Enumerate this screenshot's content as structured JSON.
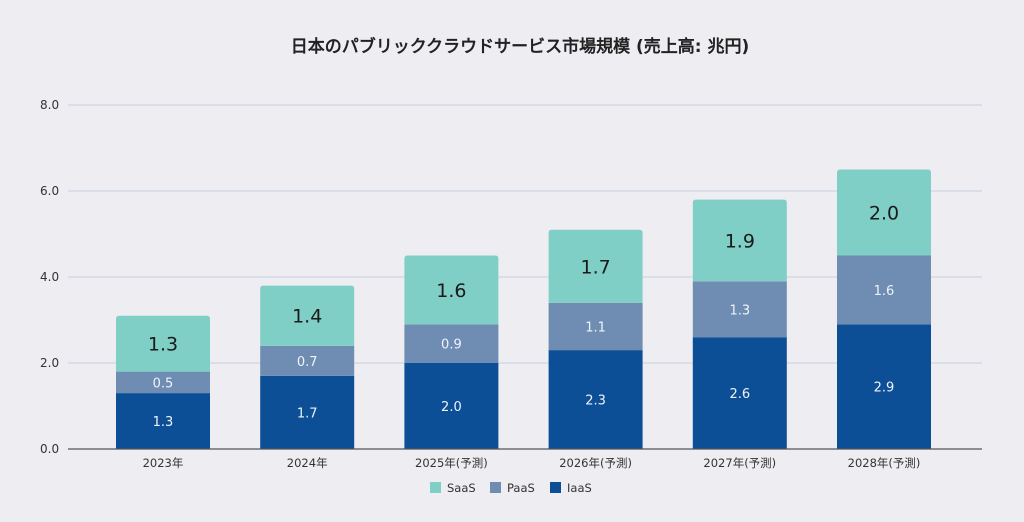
{
  "chart_data": {
    "type": "bar",
    "stacked": true,
    "title": "日本のパブリッククラウドサービス市場規模 (売上高: 兆円)",
    "xlabel": "",
    "ylabel": "",
    "ylim": [
      0,
      8
    ],
    "yticks": [
      "0.0",
      "2.0",
      "4.0",
      "6.0",
      "8.0"
    ],
    "grid": true,
    "legend_position": "bottom",
    "categories": [
      "2023年",
      "2024年",
      "2025年(予測)",
      "2026年(予測)",
      "2027年(予測)",
      "2028年(予測)"
    ],
    "series": [
      {
        "name": "IaaS",
        "color": "#0d4f96",
        "values": [
          1.3,
          1.7,
          2.0,
          2.3,
          2.6,
          2.9
        ]
      },
      {
        "name": "PaaS",
        "color": "#6f8db3",
        "values": [
          0.5,
          0.7,
          0.9,
          1.1,
          1.3,
          1.6
        ]
      },
      {
        "name": "SaaS",
        "color": "#80cfc6",
        "values": [
          1.3,
          1.4,
          1.6,
          1.7,
          1.9,
          2.0
        ]
      }
    ],
    "legend_order": [
      "SaaS",
      "PaaS",
      "IaaS"
    ]
  }
}
